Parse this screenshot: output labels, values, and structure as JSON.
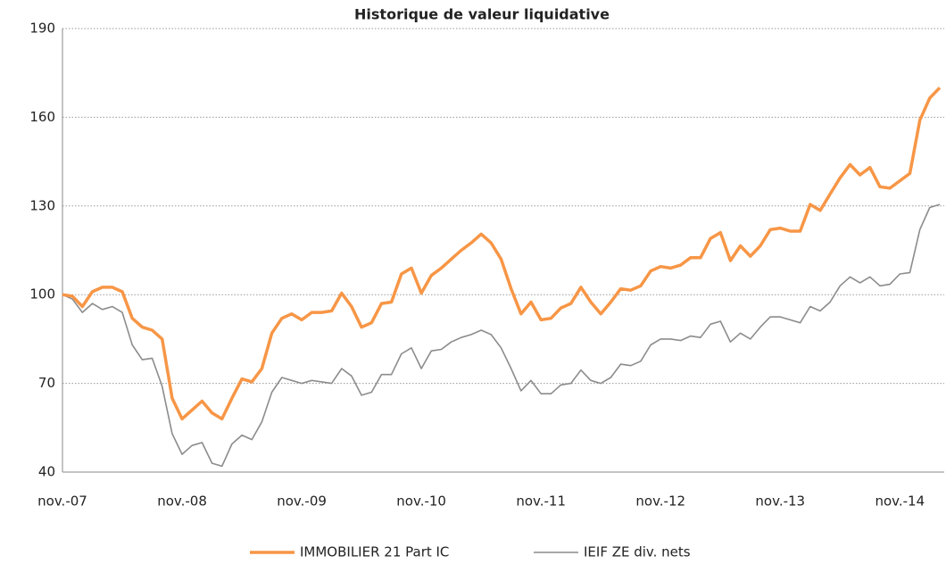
{
  "chart_data": {
    "type": "line",
    "title": "Historique de valeur liquidative",
    "categories": [
      "nov.-07",
      null,
      null,
      null,
      null,
      null,
      null,
      null,
      null,
      null,
      null,
      null,
      "nov.-08",
      null,
      null,
      null,
      null,
      null,
      null,
      null,
      null,
      null,
      null,
      null,
      "nov.-09",
      null,
      null,
      null,
      null,
      null,
      null,
      null,
      null,
      null,
      null,
      null,
      "nov.-10",
      null,
      null,
      null,
      null,
      null,
      null,
      null,
      null,
      null,
      null,
      null,
      "nov.-11",
      null,
      null,
      null,
      null,
      null,
      null,
      null,
      null,
      null,
      null,
      null,
      "nov.-12",
      null,
      null,
      null,
      null,
      null,
      null,
      null,
      null,
      null,
      null,
      null,
      "nov.-13",
      null,
      null,
      null,
      null,
      null,
      null,
      null,
      null,
      null,
      null,
      null,
      "nov.-14",
      null,
      null,
      null,
      null
    ],
    "series": [
      {
        "name": "IMMOBILIER 21 Part IC",
        "color": "#f79646",
        "values": [
          100,
          99.5,
          96,
          101,
          102.5,
          102.5,
          101,
          92,
          89,
          88,
          85,
          65,
          58,
          61,
          64,
          60,
          58,
          65,
          71.5,
          70.5,
          75,
          87,
          92,
          93.5,
          91.5,
          94,
          94,
          94.5,
          100.5,
          96,
          89,
          90.5,
          97,
          97.5,
          107,
          109,
          100.5,
          106.5,
          109,
          112,
          115,
          117.5,
          120.5,
          117.5,
          112,
          102,
          93.5,
          97.5,
          91.5,
          92,
          95.5,
          97,
          102.5,
          97.5,
          93.5,
          97.5,
          102,
          101.5,
          103,
          108,
          109.5,
          109,
          110,
          112.5,
          112.5,
          119,
          121,
          111.5,
          116.5,
          113,
          116.5,
          122,
          122.5,
          121.5,
          121.5,
          130.5,
          128.5,
          134,
          139.5,
          144,
          140.5,
          143,
          136.5,
          136,
          138.5,
          141,
          159,
          166.5,
          170
        ]
      },
      {
        "name": "IEIF ZE div. nets",
        "color": "#8c8c8c",
        "values": [
          100,
          98.5,
          94,
          97,
          95,
          96,
          94,
          83,
          78,
          78.5,
          69,
          53,
          46,
          49,
          50,
          43,
          42,
          49.5,
          52.5,
          51,
          57,
          67,
          72,
          71,
          70,
          71,
          70.5,
          70,
          75,
          72.5,
          66,
          67,
          73,
          73,
          80,
          82,
          75,
          81,
          81.5,
          84,
          85.5,
          86.5,
          88,
          86.5,
          82,
          75,
          67.5,
          71,
          66.5,
          66.5,
          69.5,
          70,
          74.5,
          71,
          70,
          72,
          76.5,
          76,
          77.5,
          83,
          85,
          85,
          84.5,
          86,
          85.5,
          90,
          91,
          84,
          87,
          85,
          89,
          92.5,
          92.5,
          91.5,
          90.5,
          96,
          94.5,
          97.5,
          103,
          106,
          104,
          106,
          103,
          103.5,
          107,
          107.5,
          122,
          129.5,
          130.5
        ]
      }
    ],
    "ylim": [
      40,
      190
    ],
    "yticks": [
      40,
      70,
      100,
      130,
      160,
      190
    ],
    "grid": true
  }
}
